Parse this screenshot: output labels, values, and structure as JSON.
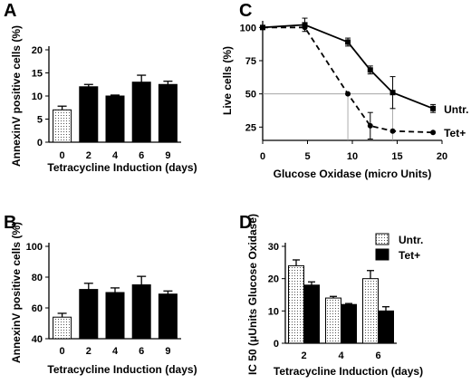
{
  "chart_data": [
    {
      "panel": "A",
      "type": "bar",
      "categories": [
        "0",
        "2",
        "4",
        "6",
        "9"
      ],
      "values": [
        7,
        12,
        10,
        13,
        12.5
      ],
      "errors": [
        0.8,
        0.5,
        0.2,
        1.5,
        0.7
      ],
      "bar_fill": [
        "dotted",
        "solid",
        "solid",
        "solid",
        "solid"
      ],
      "xlabel": "Tetracycline Induction (days)",
      "ylabel": "AnnexinV positive cells (%)",
      "ylim": [
        0,
        20
      ],
      "yticks": [
        "0",
        "5",
        "10",
        "15",
        "20"
      ]
    },
    {
      "panel": "B",
      "type": "bar",
      "categories": [
        "0",
        "2",
        "4",
        "6",
        "9"
      ],
      "values": [
        54,
        72,
        70,
        75,
        69
      ],
      "errors": [
        2.5,
        4,
        3,
        5.5,
        2
      ],
      "bar_fill": [
        "dotted",
        "solid",
        "solid",
        "solid",
        "solid"
      ],
      "xlabel": "Tetracycline Induction (days)",
      "ylabel": "AnnexinV positive cells (%)",
      "ylim": [
        40,
        100
      ],
      "yticks": [
        "40",
        "60",
        "80",
        "100"
      ]
    },
    {
      "panel": "C",
      "type": "line",
      "xlabel": "Glucose Oxidase (micro Units)",
      "ylabel": "Live cells (%)",
      "xlim": [
        0,
        20
      ],
      "ylim": [
        15,
        105
      ],
      "xticks": [
        "0",
        "5",
        "10",
        "15",
        "20"
      ],
      "yticks": [
        "25",
        "50",
        "75",
        "100"
      ],
      "series": [
        {
          "name": "Untr.",
          "style": "solid",
          "marker": "square",
          "x": [
            0,
            4.7,
            9.5,
            12,
            14.5,
            19
          ],
          "y": [
            100,
            102,
            89,
            68,
            51,
            39
          ],
          "errors": [
            0,
            5,
            3,
            3,
            12,
            3
          ]
        },
        {
          "name": "Tet+",
          "style": "dashed",
          "marker": "circle",
          "x": [
            0,
            4.7,
            9.5,
            12,
            14.5,
            19
          ],
          "y": [
            100,
            100,
            50,
            26,
            22,
            21
          ],
          "errors": [
            0,
            0,
            0,
            10,
            0,
            0
          ]
        }
      ],
      "reference_lines": [
        {
          "type": "horizontal",
          "y": 50
        },
        {
          "type": "vertical",
          "x": 9.5
        },
        {
          "type": "vertical",
          "x": 14.5
        }
      ]
    },
    {
      "panel": "D",
      "type": "bar",
      "categories": [
        "2",
        "4",
        "6"
      ],
      "xlabel": "Tetracycline Induction (days)",
      "ylabel": "IC 50 (μUnits Glucose Oxidase)",
      "ylim": [
        0,
        30
      ],
      "yticks": [
        "0",
        "10",
        "20",
        "30"
      ],
      "series": [
        {
          "name": "Untr.",
          "fill": "dotted",
          "values": [
            24,
            14,
            20
          ],
          "errors": [
            1.8,
            0.5,
            2.5
          ]
        },
        {
          "name": "Tet+",
          "fill": "solid",
          "values": [
            18,
            12,
            10
          ],
          "errors": [
            1,
            0.3,
            1.3
          ]
        }
      ]
    }
  ]
}
